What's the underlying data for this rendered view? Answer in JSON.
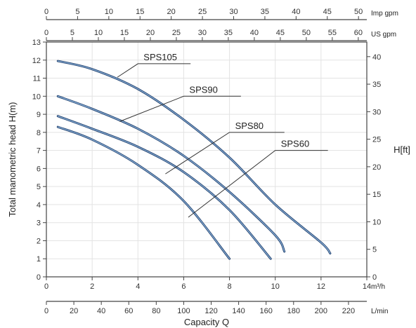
{
  "chart_data": {
    "type": "line",
    "title": "",
    "grid": true,
    "axes": {
      "bottom_m3h": {
        "unit_label": "m³/h",
        "range": [
          0,
          14
        ],
        "ticks": [
          "0",
          "2",
          "4",
          "6",
          "8",
          "10",
          "12",
          "14"
        ]
      },
      "bottom_lmin": {
        "title": "Capacity Q",
        "unit_label": "L/min",
        "range": [
          0,
          233.33
        ],
        "ticks": [
          "0",
          "20",
          "40",
          "60",
          "80",
          "100",
          "120",
          "140",
          "160",
          "180",
          "200",
          "220"
        ]
      },
      "top_us_gpm": {
        "unit_label": "US gpm",
        "range": [
          0,
          61.64
        ],
        "ticks": [
          "0",
          "5",
          "10",
          "15",
          "20",
          "25",
          "30",
          "35",
          "40",
          "45",
          "50",
          "55",
          "60"
        ]
      },
      "top_imp_gpm": {
        "unit_label": "Imp gpm",
        "range": [
          0,
          51.33
        ],
        "ticks": [
          "0",
          "5",
          "10",
          "15",
          "20",
          "25",
          "30",
          "35",
          "40",
          "45",
          "50"
        ]
      },
      "left": {
        "title": "Total manometric head H(m)",
        "range": [
          0,
          13
        ],
        "ticks": [
          "0",
          "1",
          "2",
          "3",
          "4",
          "5",
          "6",
          "7",
          "8",
          "9",
          "10",
          "11",
          "12",
          "13"
        ]
      },
      "right": {
        "title": "H[ft]",
        "range": [
          0,
          42.65
        ],
        "ticks": [
          "0",
          "5",
          "10",
          "15",
          "20",
          "25",
          "30",
          "35",
          "40"
        ]
      }
    },
    "series": [
      {
        "name": "SPS105",
        "x": [
          0.5,
          2,
          4,
          6,
          8,
          10,
          12,
          12.4
        ],
        "y": [
          11.95,
          11.5,
          10.4,
          8.7,
          6.6,
          4.0,
          1.9,
          1.3
        ]
      },
      {
        "name": "SPS90",
        "x": [
          0.5,
          2,
          4,
          6,
          8,
          10,
          10.4
        ],
        "y": [
          10.0,
          9.3,
          8.2,
          6.7,
          4.7,
          2.3,
          1.4
        ]
      },
      {
        "name": "SPS80",
        "x": [
          0.5,
          2,
          4,
          6,
          8,
          9.8
        ],
        "y": [
          8.9,
          8.2,
          7.2,
          5.8,
          3.7,
          1.0
        ]
      },
      {
        "name": "SPS60",
        "x": [
          0.5,
          2,
          4,
          6,
          8
        ],
        "y": [
          8.3,
          7.6,
          6.2,
          4.2,
          1.0
        ]
      }
    ],
    "annotations": [
      {
        "series": "SPS105",
        "text": "SPS105",
        "point": [
          3.1,
          11.05
        ],
        "label_at": [
          4.0,
          11.8
        ],
        "line_end": [
          6.3,
          11.8
        ]
      },
      {
        "series": "SPS90",
        "text": "SPS90",
        "point": [
          3.2,
          8.6
        ],
        "label_at": [
          6.0,
          10.6
        ],
        "line_end": [
          8.5,
          10.0
        ]
      },
      {
        "series": "SPS80",
        "text": "SPS80",
        "point": [
          5.2,
          5.7
        ],
        "label_at": [
          8.0,
          8.5
        ],
        "line_end": [
          10.4,
          8.0
        ]
      },
      {
        "series": "SPS60",
        "text": "SPS60",
        "point": [
          6.2,
          3.3
        ],
        "label_at": [
          10.0,
          7.6
        ],
        "line_end": [
          12.3,
          7.0
        ]
      }
    ]
  }
}
